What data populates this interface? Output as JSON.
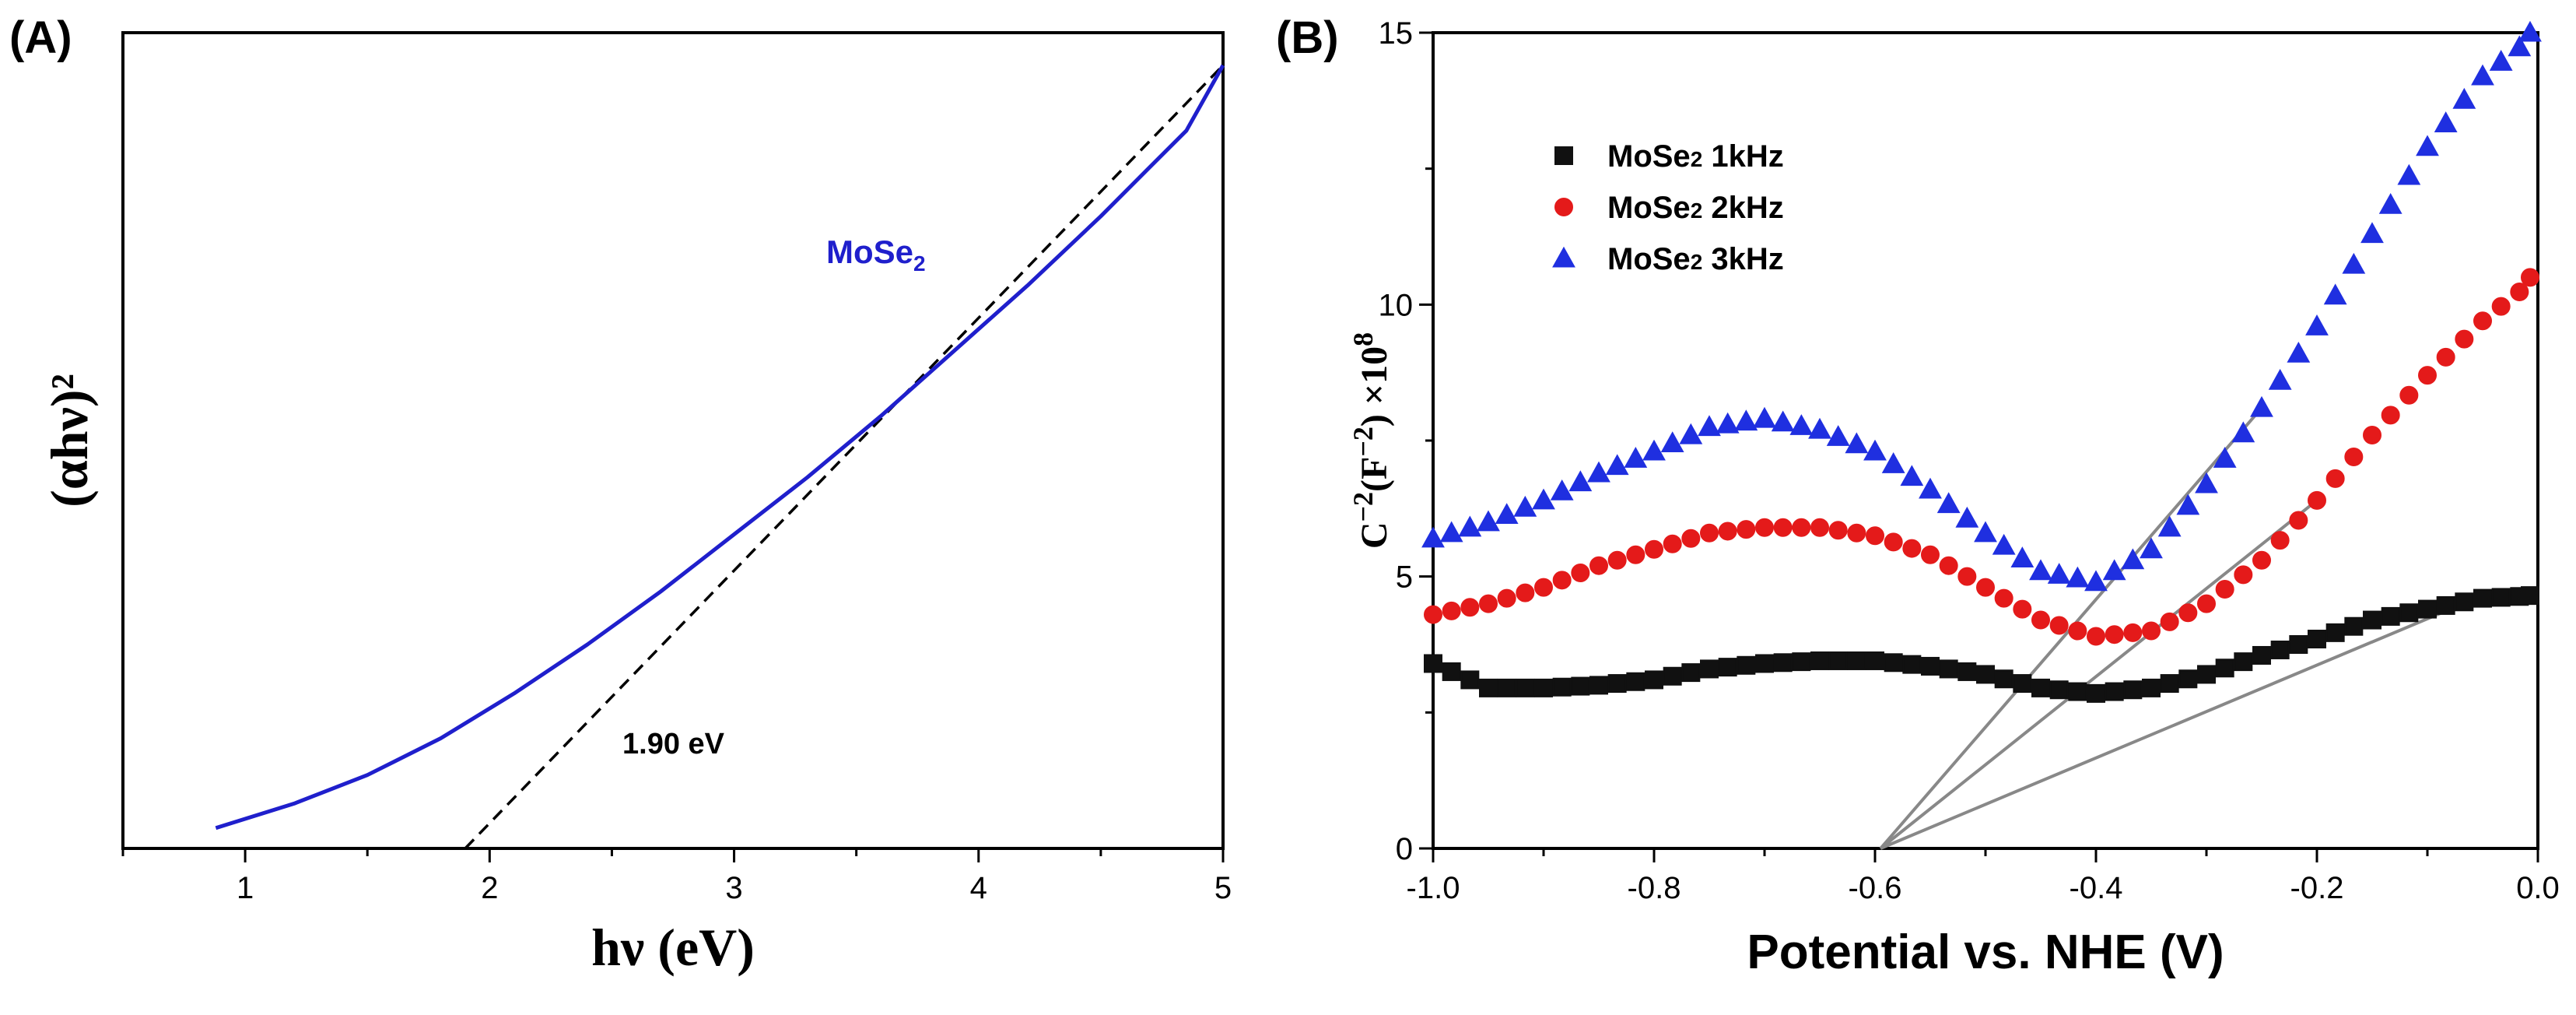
{
  "chart_data": [
    {
      "panel": "(A)",
      "type": "line",
      "xlabel": "hν (eV)",
      "ylabel": "(αhν)²",
      "xlim": [
        0.5,
        5.0
      ],
      "ylim": [
        0,
        100
      ],
      "xticks": [
        1,
        2,
        3,
        4,
        5
      ],
      "yticks": [],
      "series": [
        {
          "name": "MoSe",
          "name_sub": "2",
          "color": "#1f1fcc",
          "x": [
            0.88,
            1.2,
            1.5,
            1.8,
            2.1,
            2.4,
            2.7,
            3.0,
            3.3,
            3.6,
            3.9,
            4.2,
            4.5,
            4.7,
            4.85,
            5.0
          ],
          "y": [
            2.5,
            5.5,
            9.0,
            13.5,
            19.0,
            25.0,
            31.5,
            38.5,
            45.5,
            53.0,
            61.0,
            69.0,
            77.5,
            83.5,
            88.0,
            96.0
          ]
        }
      ],
      "tangent": {
        "x": [
          1.9,
          5.0
        ],
        "y": [
          0,
          96.0
        ],
        "style": "dashed",
        "color": "#000000"
      },
      "annotation": "1.90 eV"
    },
    {
      "panel": "(B)",
      "type": "scatter",
      "xlabel_parts": [
        "Potential vs. NHE",
        " (V)"
      ],
      "ylabel_parts": {
        "a": "C",
        "a_sup": "−2",
        "b": "(F",
        "b_sup": "−2",
        "c": ") ×10",
        "c_sup": "8"
      },
      "xlim": [
        -1.0,
        0.0
      ],
      "ylim": [
        0,
        15
      ],
      "xticks": [
        -1.0,
        -0.8,
        -0.6,
        -0.4,
        -0.2,
        0.0
      ],
      "xtick_labels": [
        "-1.0",
        "-0.8",
        "-0.6",
        "-0.4",
        "-0.2",
        "0.0"
      ],
      "yticks": [
        0,
        5,
        10,
        15
      ],
      "ytick_labels": [
        "0",
        "5",
        "10",
        "15"
      ],
      "series": [
        {
          "name": "MoSe",
          "name_sub": "2",
          "name_rest": " 1kHz",
          "marker": "square",
          "color": "#111111",
          "x": [
            -1.0,
            -0.95,
            -0.9,
            -0.85,
            -0.8,
            -0.75,
            -0.7,
            -0.65,
            -0.6,
            -0.55,
            -0.5,
            -0.45,
            -0.4,
            -0.35,
            -0.3,
            -0.25,
            -0.2,
            -0.15,
            -0.1,
            -0.05,
            0.0
          ],
          "y": [
            3.4,
            2.95,
            2.95,
            3.0,
            3.1,
            3.3,
            3.4,
            3.45,
            3.45,
            3.35,
            3.2,
            2.95,
            2.85,
            2.95,
            3.2,
            3.55,
            3.85,
            4.2,
            4.4,
            4.6,
            4.65
          ]
        },
        {
          "name": "MoSe",
          "name_sub": "2",
          "name_rest": " 2kHz",
          "marker": "circle",
          "color": "#e41a1a",
          "x": [
            -1.0,
            -0.95,
            -0.9,
            -0.85,
            -0.8,
            -0.75,
            -0.7,
            -0.65,
            -0.6,
            -0.55,
            -0.5,
            -0.45,
            -0.4,
            -0.35,
            -0.3,
            -0.25,
            -0.2,
            -0.15,
            -0.1,
            -0.05,
            0.0
          ],
          "y": [
            4.3,
            4.5,
            4.8,
            5.2,
            5.5,
            5.8,
            5.9,
            5.9,
            5.75,
            5.4,
            4.8,
            4.2,
            3.9,
            4.0,
            4.5,
            5.3,
            6.4,
            7.6,
            8.7,
            9.7,
            10.5
          ]
        },
        {
          "name": "MoSe",
          "name_sub": "2",
          "name_rest": " 3kHz",
          "marker": "triangle",
          "color": "#1f2fe0",
          "x": [
            -1.0,
            -0.95,
            -0.9,
            -0.85,
            -0.8,
            -0.75,
            -0.7,
            -0.65,
            -0.6,
            -0.55,
            -0.5,
            -0.45,
            -0.4,
            -0.35,
            -0.3,
            -0.25,
            -0.2,
            -0.15,
            -0.1,
            -0.05,
            0.0
          ],
          "y": [
            5.7,
            6.0,
            6.4,
            6.9,
            7.3,
            7.75,
            7.9,
            7.7,
            7.3,
            6.6,
            5.8,
            5.1,
            4.9,
            5.5,
            6.7,
            8.1,
            9.6,
            11.3,
            12.9,
            14.2,
            15.0
          ]
        }
      ],
      "fit_lines": [
        {
          "x": [
            -0.595,
            -0.05
          ],
          "y": [
            0,
            4.65
          ]
        },
        {
          "x": [
            -0.595,
            -0.2
          ],
          "y": [
            0,
            6.4
          ]
        },
        {
          "x": [
            -0.595,
            -0.25
          ],
          "y": [
            0,
            8.1
          ]
        }
      ],
      "fit_line_color": "#888888",
      "legend_position": "top-left"
    }
  ]
}
